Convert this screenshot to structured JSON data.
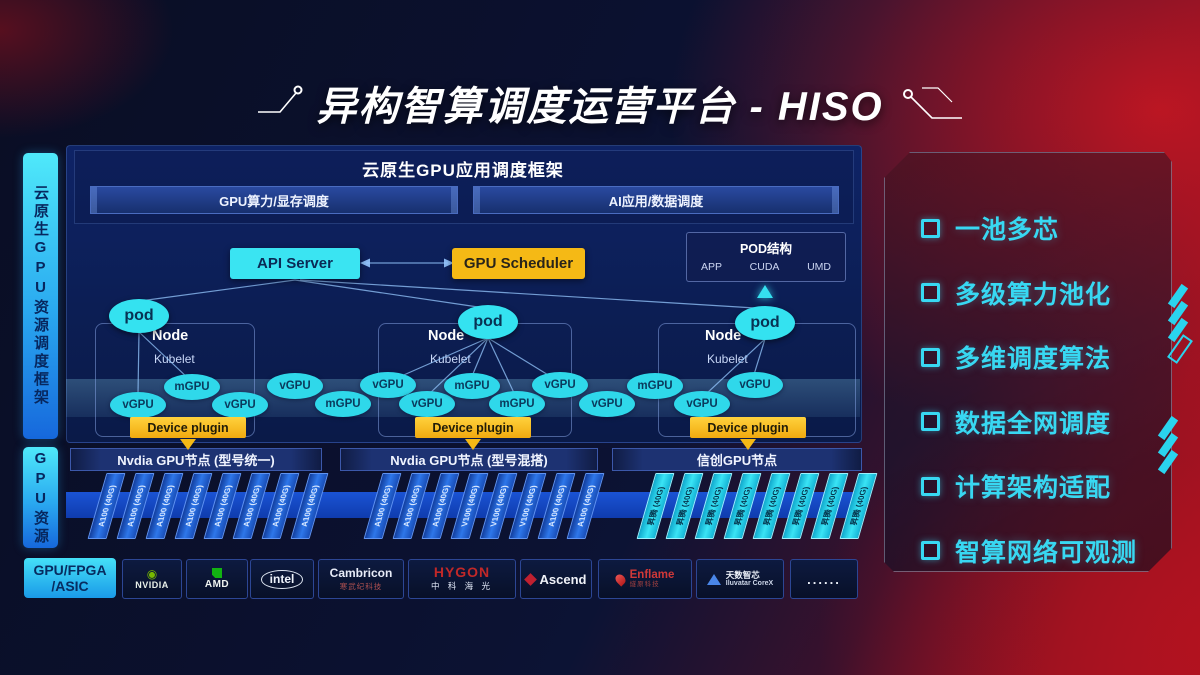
{
  "title": "异构智算调度运营平台 - HISO",
  "left_tabs": [
    {
      "label": "云原生GPU资源调度框架"
    },
    {
      "label": "GPU资源"
    }
  ],
  "framework": {
    "title": "云原生GPU应用调度框架",
    "bars": [
      "GPU算力/显存调度",
      "AI应用/数据调度"
    ]
  },
  "scheduler": {
    "api_server": "API Server",
    "gpu_scheduler": "GPU Scheduler",
    "pod_struct": {
      "title": "POD结构",
      "items": [
        "APP",
        "CUDA",
        "UMD"
      ]
    }
  },
  "nodes": [
    {
      "pod": "pod",
      "name": "Node",
      "agent": "Kubelet",
      "plugin": "Device plugin"
    },
    {
      "pod": "pod",
      "name": "Node",
      "agent": "Kubelet",
      "plugin": "Device plugin"
    },
    {
      "pod": "pod",
      "name": "Node",
      "agent": "Kubelet",
      "plugin": "Device plugin"
    }
  ],
  "gpu_ellipses": [
    "vGPU",
    "mGPU",
    "vGPU",
    "vGPU",
    "mGPU",
    "vGPU",
    "vGPU",
    "mGPU",
    "mGPU",
    "vGPU",
    "vGPU",
    "mGPU",
    "vGPU",
    "vGPU"
  ],
  "gpu_nodes": [
    {
      "label": "Nvdia GPU节点 (型号统一)",
      "card_style": "blue",
      "cards": [
        "A100 (40G)",
        "A100 (40G)",
        "A100 (40G)",
        "A100 (40G)",
        "A100 (40G)",
        "A100 (40G)",
        "A100 (40G)",
        "A100 (40G)"
      ]
    },
    {
      "label": "Nvdia GPU节点 (型号混搭)",
      "card_style": "blue",
      "cards": [
        "A100 (40G)",
        "A100 (40G)",
        "A100 (40G)",
        "V100 (40G)",
        "V100 (40G)",
        "V100 (40G)",
        "A100 (40G)",
        "A100 (40G)"
      ]
    },
    {
      "label": "信创GPU节点",
      "card_style": "cyan",
      "cards": [
        "昇腾 (40G)",
        "昇腾 (40G)",
        "昇腾 (40G)",
        "昇腾 (40G)",
        "昇腾 (40G)",
        "昇腾 (40G)",
        "昇腾 (40G)",
        "昇腾 (40G)"
      ]
    }
  ],
  "features": [
    "一池多芯",
    "多级算力池化",
    "多维调度算法",
    "数据全网调度",
    "计算架构适配",
    "智算网络可观测"
  ],
  "vendors": {
    "category_line1": "GPU/FPGA",
    "category_line2": "/ASIC",
    "logos": [
      {
        "id": "nvidia",
        "label": "NVIDIA"
      },
      {
        "id": "amd",
        "label": "AMD"
      },
      {
        "id": "intel",
        "label": "intel"
      },
      {
        "id": "cambricon",
        "label": "Cambricon",
        "sublabel": "寒武纪科技"
      },
      {
        "id": "hygon",
        "label": "HYGON",
        "sublabel": "中 科 海 光"
      },
      {
        "id": "ascend",
        "label": "Ascend"
      },
      {
        "id": "enflame",
        "label": "Enflame",
        "sublabel": "燧原科技"
      },
      {
        "id": "iluvatar",
        "label": "天数智芯",
        "sublabel": "Iluvatar CoreX"
      },
      {
        "id": "more",
        "label": "......"
      }
    ]
  },
  "colors": {
    "accent_cyan": "#35E0F0",
    "accent_yellow": "#F5B915",
    "card_blue": "#2E77EA",
    "card_cyan": "#2FD8EA",
    "background_navy": "#0C1334",
    "background_red": "#A81424",
    "nvidia_green": "#76B900",
    "logo_red": "#C02830"
  }
}
